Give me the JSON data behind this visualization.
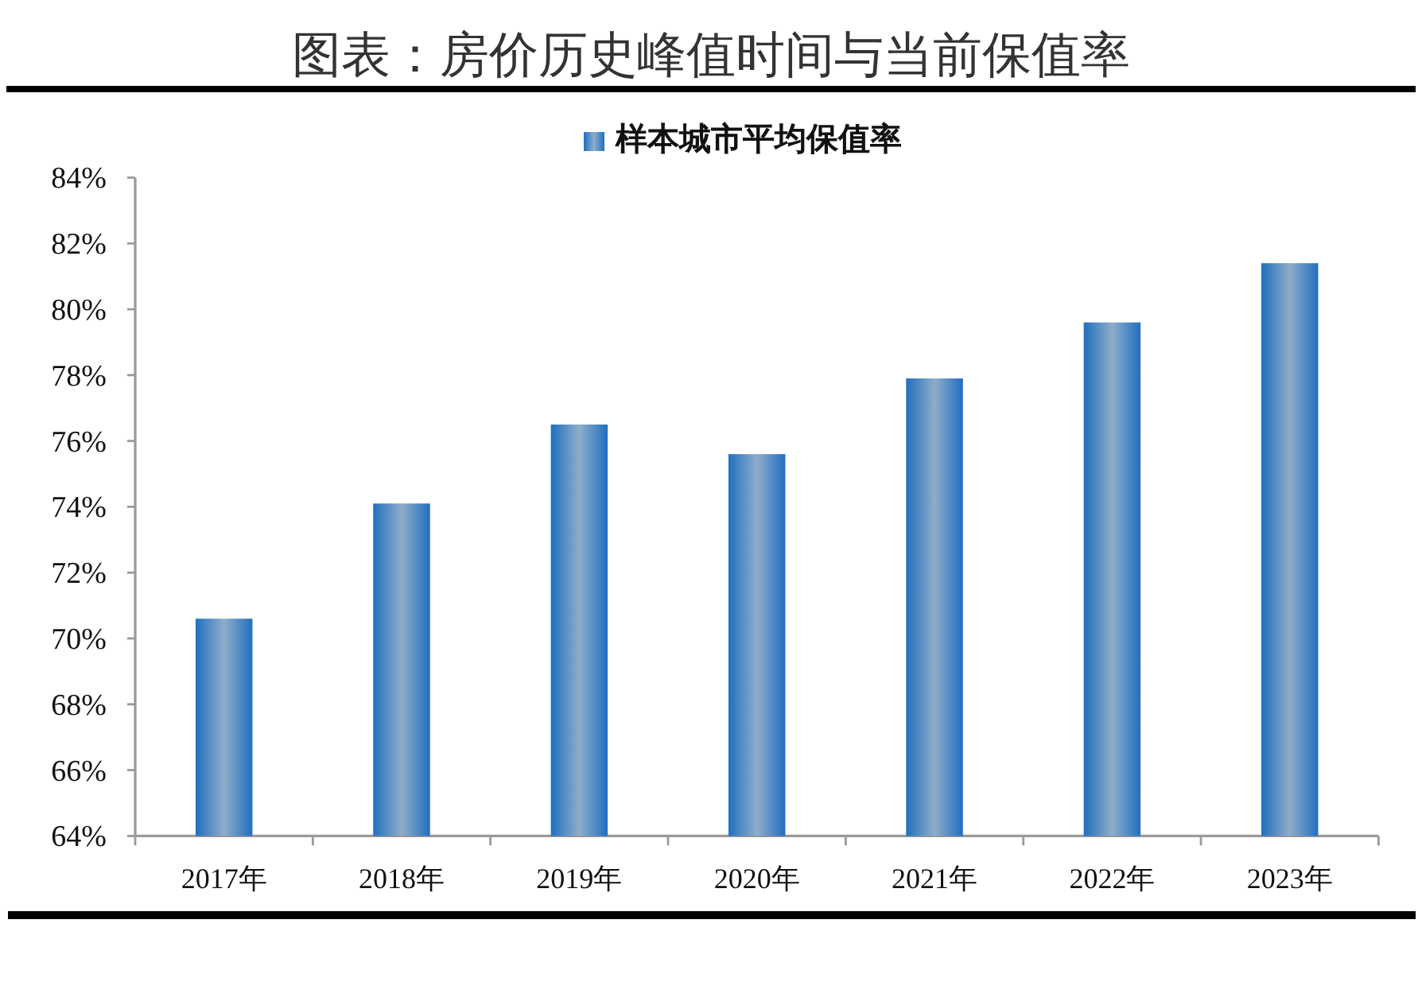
{
  "chart_data": {
    "type": "bar",
    "title": "图表：房价历史峰值时间与当前保值率",
    "categories": [
      "2017年",
      "2018年",
      "2019年",
      "2020年",
      "2021年",
      "2022年",
      "2023年"
    ],
    "series": [
      {
        "name": "样本城市平均保值率",
        "color": "#1f6fbf",
        "values": [
          70.6,
          74.1,
          76.5,
          75.6,
          77.9,
          79.6,
          81.4
        ]
      }
    ],
    "ylim": [
      64,
      84
    ],
    "yticks": [
      {
        "value": 64,
        "label": "64%"
      },
      {
        "value": 66,
        "label": "66%"
      },
      {
        "value": 68,
        "label": "68%"
      },
      {
        "value": 70,
        "label": "70%"
      },
      {
        "value": 72,
        "label": "72%"
      },
      {
        "value": 74,
        "label": "74%"
      },
      {
        "value": 76,
        "label": "76%"
      },
      {
        "value": 78,
        "label": "78%"
      },
      {
        "value": 80,
        "label": "80%"
      },
      {
        "value": 82,
        "label": "82%"
      },
      {
        "value": 84,
        "label": "84%"
      }
    ],
    "legend": "top"
  }
}
